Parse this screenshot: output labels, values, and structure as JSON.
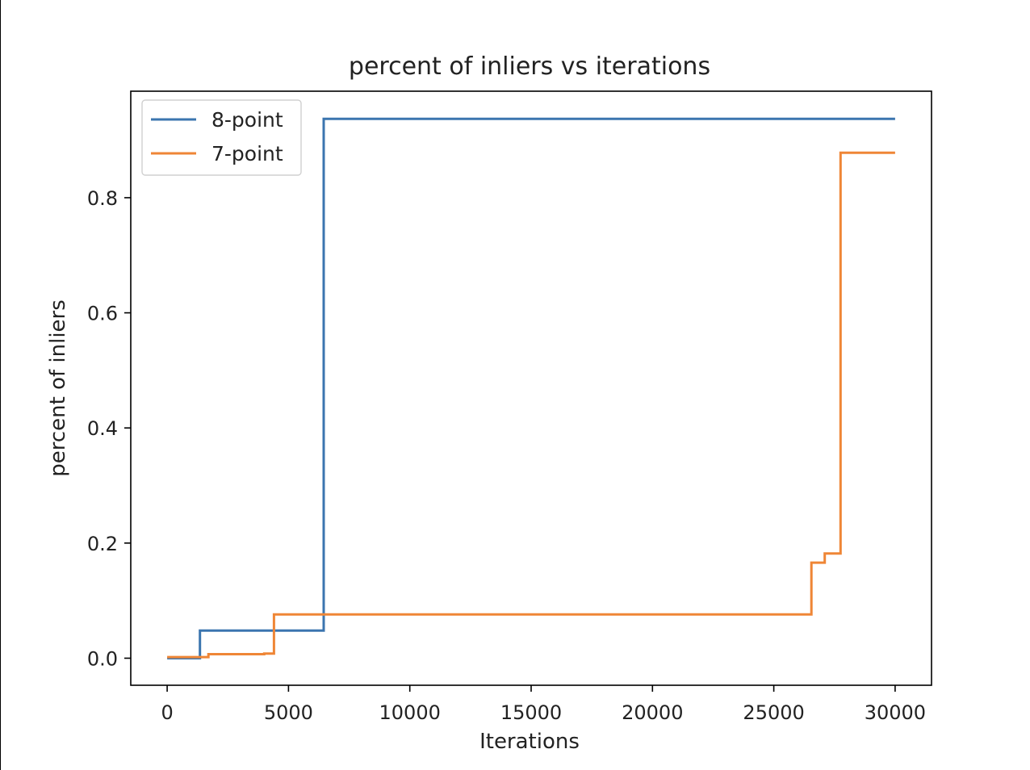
{
  "chart_data": {
    "type": "line",
    "title": "percent of inliers vs iterations",
    "xlabel": "Iterations",
    "ylabel": "percent of inliers",
    "xlim": [
      -1500,
      31500
    ],
    "ylim": [
      -0.047,
      0.985
    ],
    "xticks": [
      0,
      5000,
      10000,
      15000,
      20000,
      25000,
      30000
    ],
    "yticks": [
      0.0,
      0.2,
      0.4,
      0.6,
      0.8
    ],
    "grid": false,
    "legend_position": "top-left",
    "step": true,
    "series": [
      {
        "name": "8-point",
        "color": "#3b75af",
        "points": [
          [
            0,
            0.0
          ],
          [
            1350,
            0.0
          ],
          [
            1350,
            0.048
          ],
          [
            6450,
            0.048
          ],
          [
            6450,
            0.937
          ],
          [
            30000,
            0.937
          ]
        ]
      },
      {
        "name": "7-point",
        "color": "#ef8636",
        "points": [
          [
            0,
            0.002
          ],
          [
            1700,
            0.002
          ],
          [
            1700,
            0.007
          ],
          [
            4000,
            0.007
          ],
          [
            4000,
            0.008
          ],
          [
            4400,
            0.008
          ],
          [
            4400,
            0.076
          ],
          [
            26550,
            0.076
          ],
          [
            26550,
            0.166
          ],
          [
            27100,
            0.166
          ],
          [
            27100,
            0.182
          ],
          [
            27750,
            0.182
          ],
          [
            27750,
            0.878
          ],
          [
            30000,
            0.878
          ]
        ]
      }
    ]
  }
}
